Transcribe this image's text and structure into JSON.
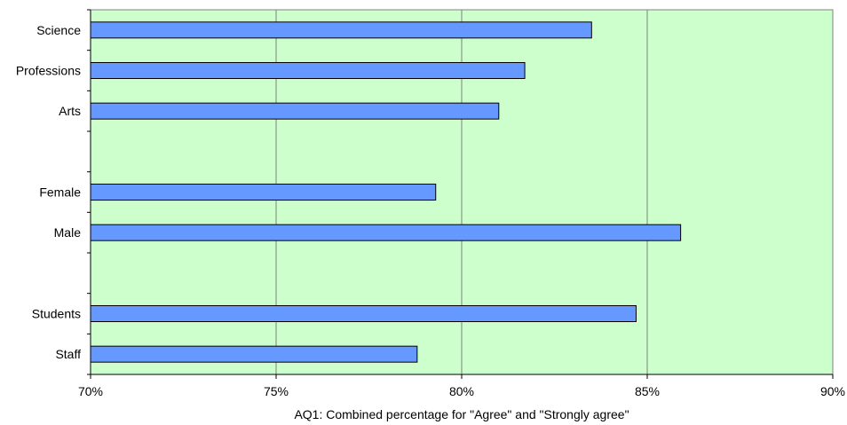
{
  "chart_data": {
    "type": "bar",
    "orientation": "horizontal",
    "categories": [
      "Science",
      "Professions",
      "Arts",
      "",
      "Female",
      "Male",
      "",
      "Students",
      "Staff"
    ],
    "values": [
      83.5,
      81.7,
      81.0,
      null,
      79.3,
      85.9,
      null,
      84.7,
      78.8
    ],
    "xlabel": "AQ1: Combined percentage for \"Agree\" and \"Strongly agree\"",
    "ylabel": "",
    "xlim": [
      70,
      90
    ],
    "xticks": [
      70,
      75,
      80,
      85,
      90
    ],
    "xtick_labels": [
      "70%",
      "75%",
      "80%",
      "85%",
      "90%"
    ],
    "grid": "vertical",
    "legend": "none",
    "colors": {
      "bar_fill": "#6699ff",
      "bar_stroke": "#000000",
      "plot_background": "#ccffcc",
      "gridline": "#808080"
    }
  }
}
